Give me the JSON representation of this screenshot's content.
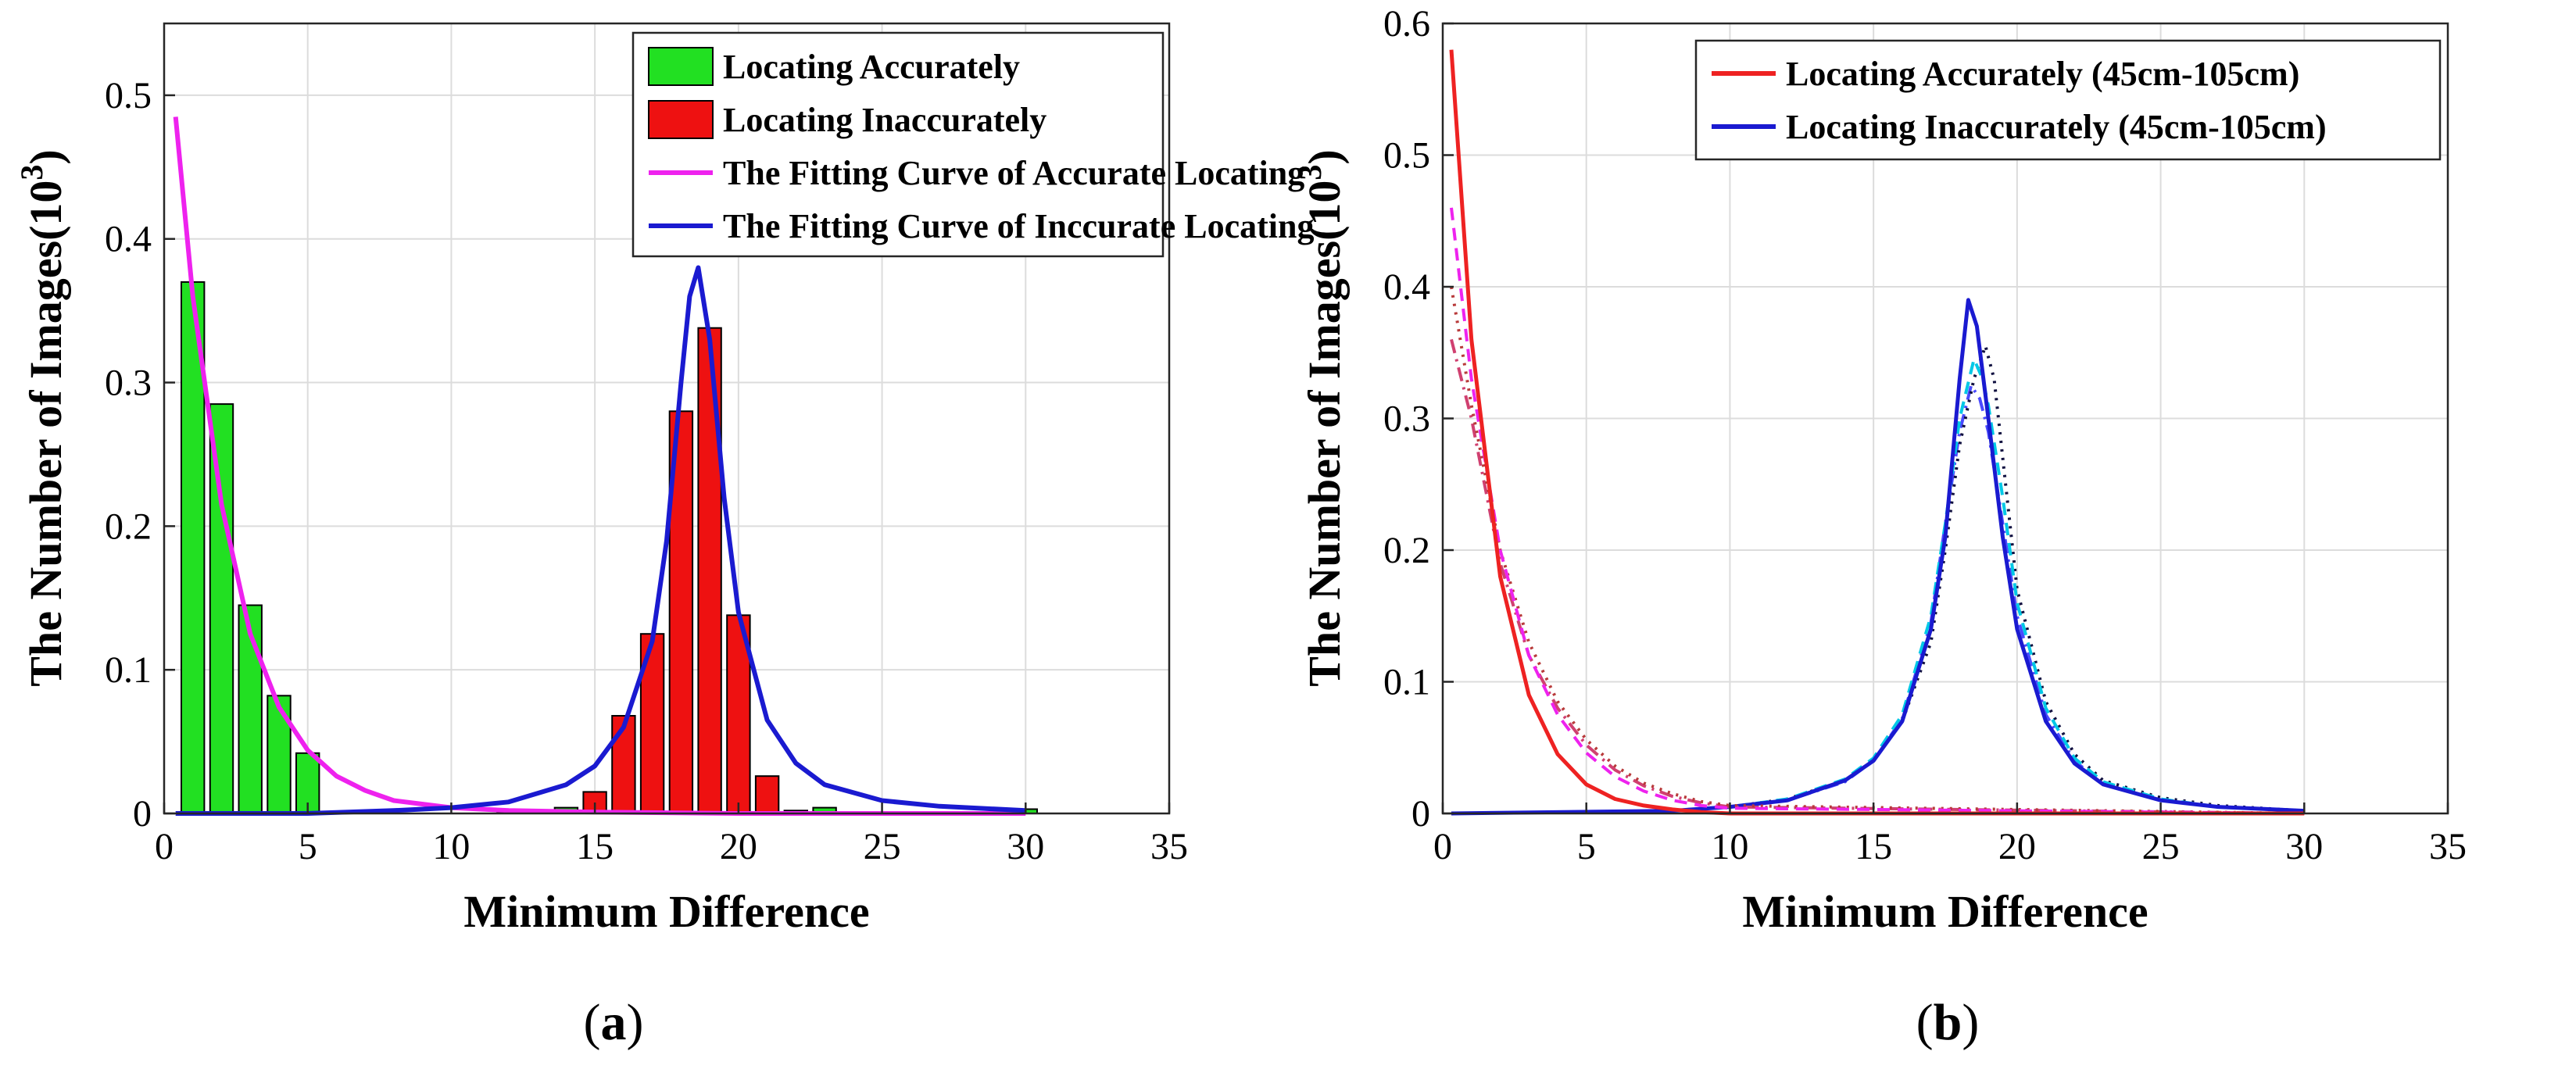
{
  "chart_data": [
    {
      "type": "bar",
      "panel_caption": "a",
      "xlabel": "Minimum Difference",
      "ylabel": "The Number of Images(10^3)",
      "ylabel_parts": {
        "main": "The Number of Images(10",
        "sup": "3",
        "end": ")"
      },
      "xlim": [
        0,
        35
      ],
      "ylim": [
        0,
        0.55
      ],
      "xticks": [
        0,
        5,
        10,
        15,
        20,
        25,
        30,
        35
      ],
      "yticks": [
        0,
        0.1,
        0.2,
        0.3,
        0.4,
        0.5
      ],
      "ytick_labels": [
        "0",
        "0.1",
        "0.2",
        "0.3",
        "0.4",
        "0.5"
      ],
      "grid": true,
      "legend_location": "top-right",
      "bar_series": [
        {
          "name": "Locating Accurately",
          "color": "#22e022",
          "x": [
            1,
            2,
            3,
            4,
            5,
            12,
            14,
            23,
            30
          ],
          "values": [
            0.37,
            0.285,
            0.145,
            0.082,
            0.042,
            0.001,
            0.004,
            0.004,
            0.003
          ]
        },
        {
          "name": "Locating Inaccurately",
          "color": "#ee1111",
          "x": [
            15,
            16,
            17,
            18,
            19,
            20,
            21,
            22
          ],
          "values": [
            0.015,
            0.068,
            0.125,
            0.28,
            0.338,
            0.138,
            0.026,
            0.002
          ]
        }
      ],
      "line_series": [
        {
          "name": "The Fitting Curve of Accurate Locating",
          "color": "#ee22ee",
          "x": [
            0.4,
            1,
            2,
            3,
            4,
            5,
            6,
            7,
            8,
            10,
            12,
            15,
            20,
            30
          ],
          "values": [
            0.485,
            0.36,
            0.215,
            0.125,
            0.074,
            0.044,
            0.026,
            0.016,
            0.009,
            0.004,
            0.002,
            0.001,
            0.0,
            0.0
          ]
        },
        {
          "name": "The Fitting Curve of Inccurate Locating",
          "color": "#1a1ad0",
          "x": [
            0.4,
            5,
            8,
            10,
            12,
            14,
            15,
            16,
            17,
            17.5,
            18,
            18.3,
            18.6,
            19,
            19.5,
            20,
            21,
            22,
            23,
            25,
            27,
            30
          ],
          "values": [
            0.0,
            0.0,
            0.002,
            0.004,
            0.008,
            0.02,
            0.033,
            0.06,
            0.12,
            0.19,
            0.3,
            0.36,
            0.38,
            0.33,
            0.22,
            0.14,
            0.065,
            0.035,
            0.02,
            0.009,
            0.005,
            0.002
          ]
        }
      ]
    },
    {
      "type": "line",
      "panel_caption": "b",
      "xlabel": "Minimum Difference",
      "ylabel": "The Number of Images(10^3)",
      "ylabel_parts": {
        "main": "The Number of Images(10",
        "sup": "3",
        "end": ")"
      },
      "xlim": [
        0,
        35
      ],
      "ylim": [
        0,
        0.6
      ],
      "xticks": [
        0,
        5,
        10,
        15,
        20,
        25,
        30,
        35
      ],
      "yticks": [
        0,
        0.1,
        0.2,
        0.3,
        0.4,
        0.5,
        0.6
      ],
      "ytick_labels": [
        "0",
        "0.1",
        "0.2",
        "0.3",
        "0.4",
        "0.5",
        "0.6"
      ],
      "grid": true,
      "legend_location": "top-right",
      "legend_series": [
        {
          "name": "Locating Accurately (45cm-105cm)",
          "color": "#ee2222"
        },
        {
          "name": "Locating Inaccurately (45cm-105cm)",
          "color": "#1a1ad0"
        }
      ],
      "series": [
        {
          "name": "acc-a",
          "color": "#ee2222",
          "style": "solid",
          "x": [
            0.3,
            1,
            2,
            3,
            4,
            5,
            6,
            7,
            8,
            9,
            10,
            30
          ],
          "values": [
            0.58,
            0.36,
            0.18,
            0.09,
            0.045,
            0.022,
            0.011,
            0.006,
            0.003,
            0.001,
            0.0,
            0.0
          ]
        },
        {
          "name": "acc-b",
          "color": "#ee22ee",
          "style": "dashed",
          "x": [
            0.3,
            1,
            2,
            3,
            4,
            5,
            6,
            7,
            8,
            9,
            10,
            30
          ],
          "values": [
            0.46,
            0.33,
            0.2,
            0.12,
            0.075,
            0.046,
            0.028,
            0.017,
            0.01,
            0.006,
            0.004,
            0.0
          ]
        },
        {
          "name": "acc-c",
          "color": "#b83a3a",
          "style": "dotted",
          "x": [
            0.3,
            1,
            2,
            3,
            4,
            5,
            6,
            7,
            8,
            9,
            10,
            30
          ],
          "values": [
            0.4,
            0.31,
            0.2,
            0.13,
            0.085,
            0.056,
            0.036,
            0.023,
            0.015,
            0.009,
            0.006,
            0.0
          ]
        },
        {
          "name": "acc-d",
          "color": "#d04070",
          "style": "dashdot",
          "x": [
            0.3,
            1,
            2,
            3,
            4,
            5,
            6,
            7,
            8,
            9,
            10,
            30
          ],
          "values": [
            0.36,
            0.3,
            0.19,
            0.12,
            0.08,
            0.052,
            0.033,
            0.021,
            0.013,
            0.008,
            0.005,
            0.0
          ]
        },
        {
          "name": "inacc-a",
          "color": "#1a1ad0",
          "style": "solid",
          "x": [
            0.3,
            8,
            10,
            12,
            14,
            15,
            16,
            17,
            17.5,
            18,
            18.3,
            18.6,
            19,
            19.5,
            20,
            21,
            22,
            23,
            25,
            27,
            30
          ],
          "values": [
            0.0,
            0.002,
            0.005,
            0.01,
            0.025,
            0.04,
            0.07,
            0.14,
            0.21,
            0.33,
            0.39,
            0.37,
            0.3,
            0.21,
            0.14,
            0.07,
            0.038,
            0.022,
            0.01,
            0.005,
            0.002
          ]
        },
        {
          "name": "inacc-b",
          "color": "#00c8e6",
          "style": "dashed",
          "x": [
            0.3,
            8,
            10,
            12,
            14,
            15,
            16,
            17,
            17.5,
            18,
            18.5,
            18.8,
            19,
            19.5,
            20,
            21,
            22,
            23,
            25,
            27,
            30
          ],
          "values": [
            0.0,
            0.002,
            0.005,
            0.011,
            0.026,
            0.042,
            0.075,
            0.15,
            0.22,
            0.3,
            0.345,
            0.33,
            0.31,
            0.24,
            0.16,
            0.08,
            0.042,
            0.024,
            0.011,
            0.005,
            0.002
          ]
        },
        {
          "name": "inacc-c",
          "color": "#101040",
          "style": "dotted",
          "x": [
            0.3,
            8,
            10,
            12,
            14,
            15,
            16,
            17,
            17.5,
            18,
            18.5,
            18.9,
            19.2,
            19.6,
            20,
            21,
            22,
            23,
            25,
            27,
            30
          ],
          "values": [
            0.0,
            0.002,
            0.005,
            0.011,
            0.025,
            0.04,
            0.07,
            0.13,
            0.2,
            0.28,
            0.33,
            0.355,
            0.33,
            0.25,
            0.17,
            0.085,
            0.045,
            0.025,
            0.012,
            0.006,
            0.002
          ]
        },
        {
          "name": "inacc-d",
          "color": "#4a4aff",
          "style": "dashdot",
          "x": [
            0.3,
            8,
            10,
            12,
            14,
            15,
            16,
            17,
            17.5,
            18,
            18.4,
            18.7,
            19,
            19.5,
            20,
            21,
            22,
            23,
            25,
            27,
            30
          ],
          "values": [
            0.0,
            0.002,
            0.005,
            0.01,
            0.024,
            0.04,
            0.072,
            0.145,
            0.22,
            0.29,
            0.325,
            0.315,
            0.29,
            0.22,
            0.15,
            0.075,
            0.04,
            0.022,
            0.01,
            0.005,
            0.002
          ]
        }
      ]
    }
  ]
}
